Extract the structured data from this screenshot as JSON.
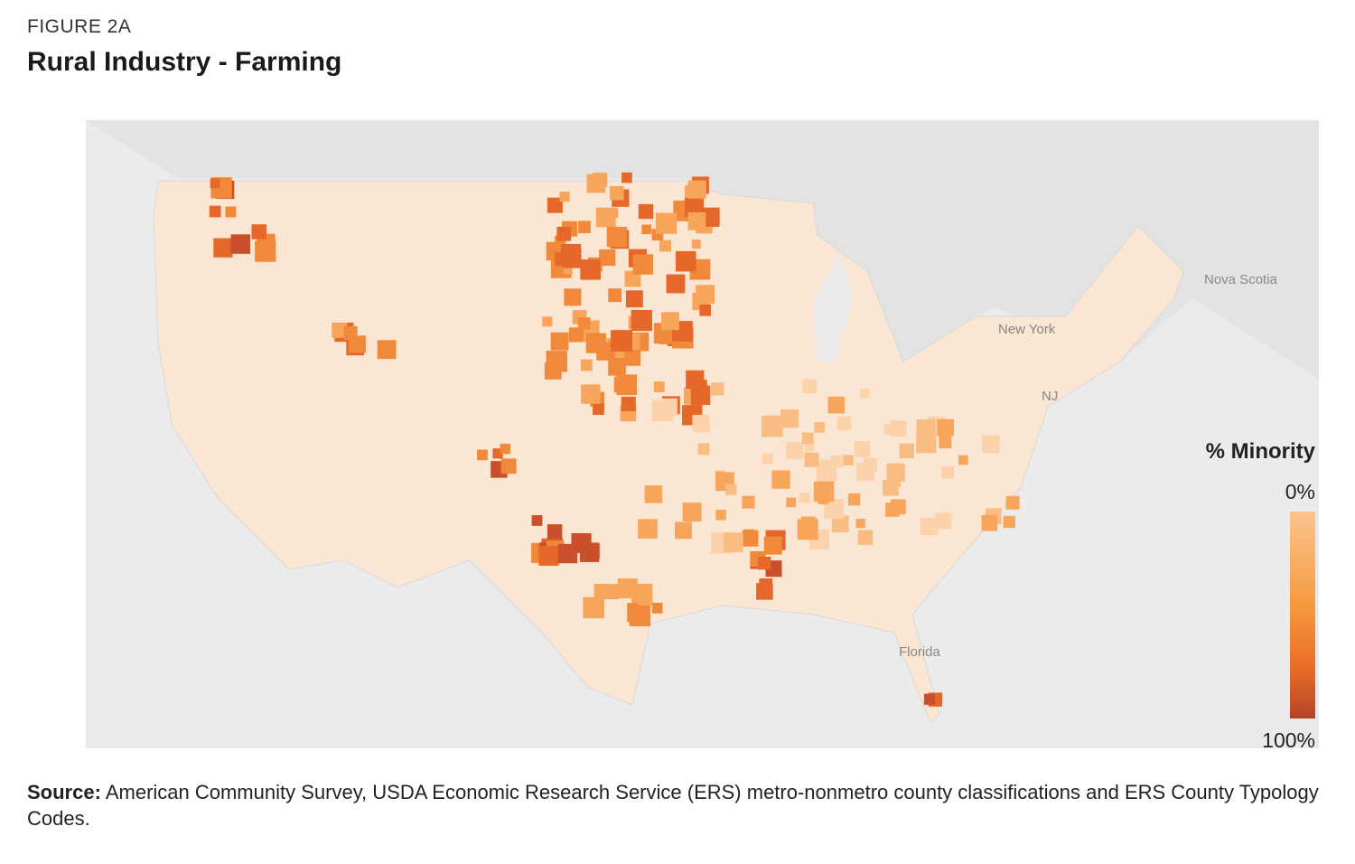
{
  "header": {
    "figure_label": "FIGURE 2A",
    "title": "Rural Industry - Farming"
  },
  "map_labels": [
    "Nova Scotia",
    "New York",
    "Florida",
    "NJ"
  ],
  "legend": {
    "title": "% Minority",
    "min_label": "0%",
    "max_label": "100%"
  },
  "source": {
    "label": "Source:",
    "text": "American Community Survey, USDA Economic Research Service (ERS) metro-nonmetro county classifications and ERS County Typology Codes."
  }
}
